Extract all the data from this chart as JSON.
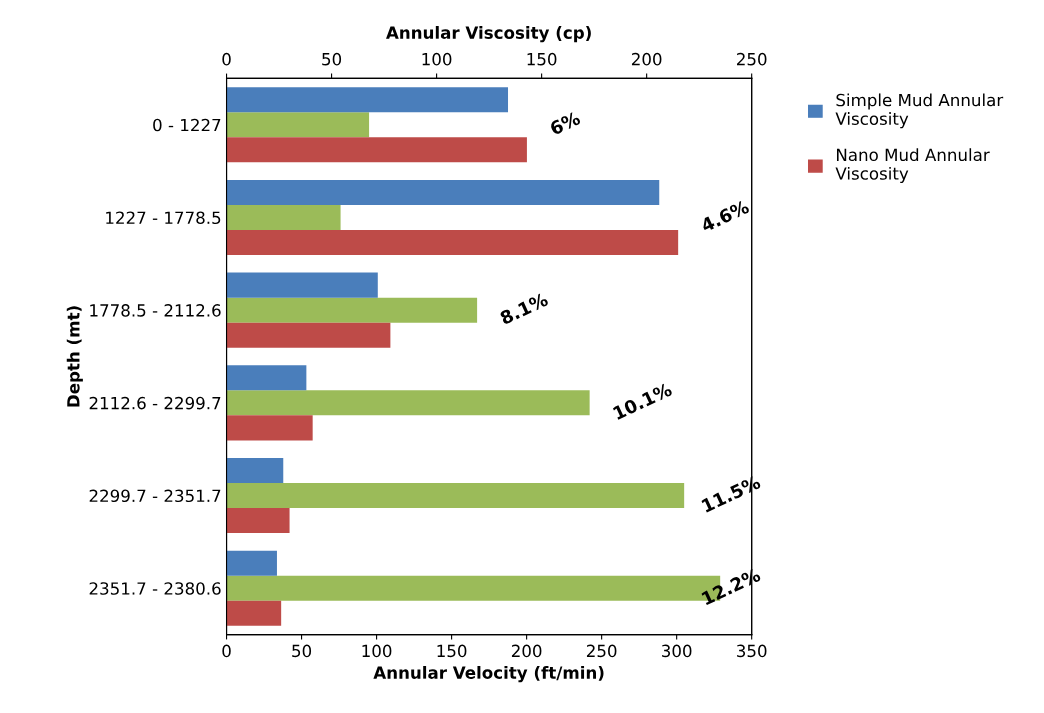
{
  "chart_data": {
    "type": "bar",
    "orientation": "horizontal",
    "categories": [
      "0 - 1227",
      "1227 - 1778.5",
      "1778.5 - 2112.6",
      "2112.6 - 2299.7",
      "2299.7 - 2351.7",
      "2351.7 - 2380.6"
    ],
    "series": [
      {
        "name": "Simple Mud Annular Viscosity",
        "color": "#4a7ebb",
        "axis": "x2",
        "values": [
          134,
          206,
          72,
          38,
          27,
          24
        ]
      },
      {
        "color": "#9bbb59",
        "values": [
          95,
          76,
          167,
          242,
          305,
          329
        ]
      },
      {
        "name": "Nano Mud Annular Viscosity",
        "color": "#be4b48",
        "axis": "x2",
        "values": [
          143,
          215,
          78,
          41,
          30,
          26
        ]
      }
    ],
    "xlim": [
      0,
      350
    ],
    "xticks": [
      0,
      50,
      100,
      150,
      200,
      250,
      300,
      350
    ],
    "x2lim": [
      0,
      250
    ],
    "x2ticks": [
      0,
      50,
      100,
      150,
      200,
      250
    ],
    "xlabel": "Annular Velocity (ft/min)",
    "x2label": "Annular Viscosity (cp)",
    "ylabel": "Depth (mt)",
    "annotations": [
      "6%",
      "4.6%",
      "8.1%",
      "10.1%",
      "11.5%",
      "12.2%"
    ],
    "grid": false,
    "legend": "right"
  }
}
